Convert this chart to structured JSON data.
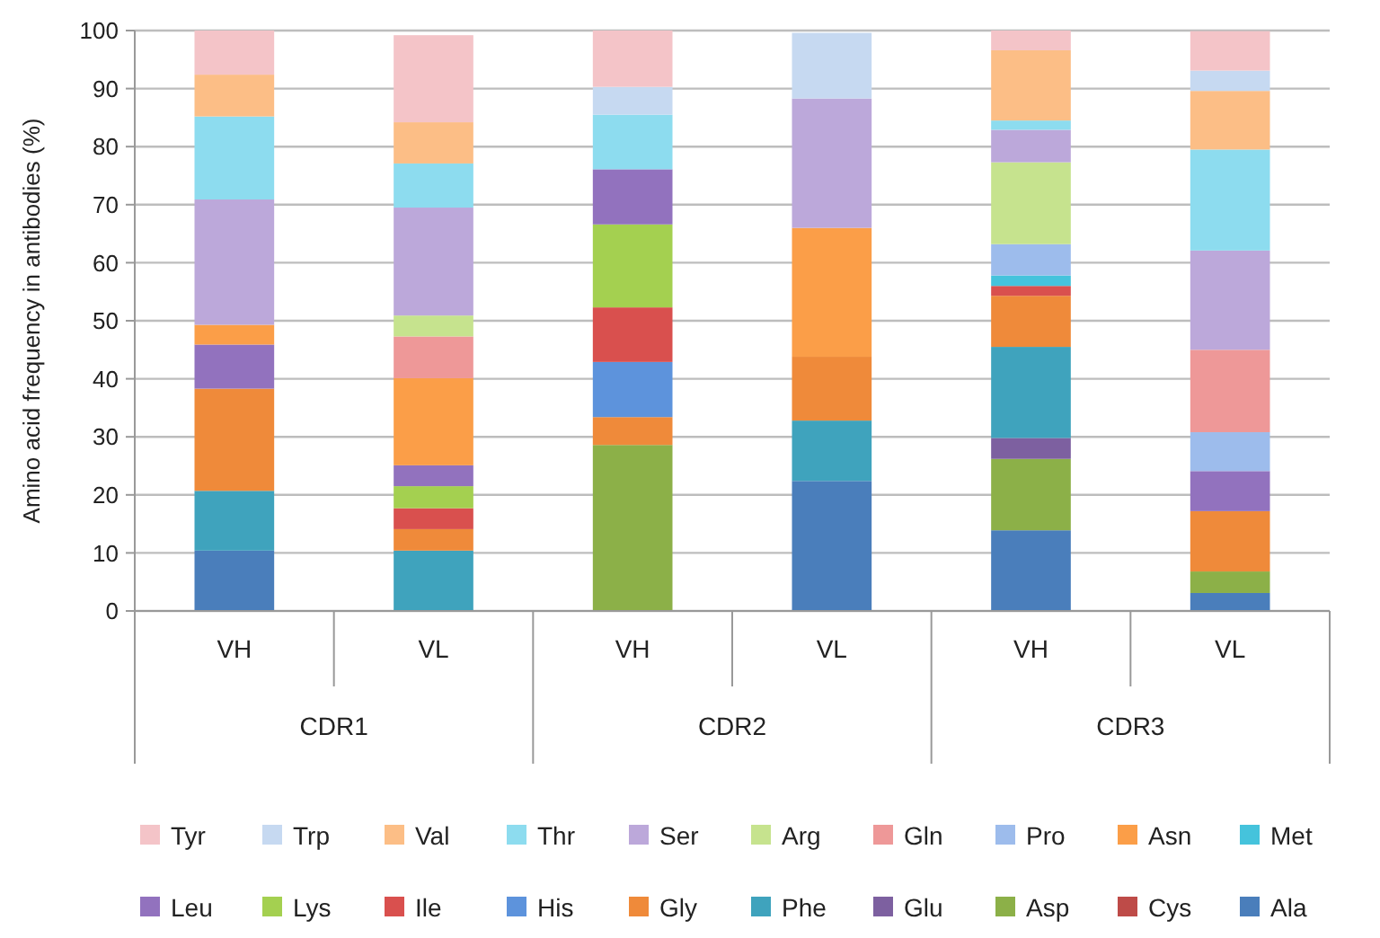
{
  "chart_data": {
    "type": "bar",
    "stacked": true,
    "ylabel": "Amino acid frequency in antibodies (%)",
    "categories": [
      "VH",
      "VL",
      "VH",
      "VL",
      "VH",
      "VL"
    ],
    "annotations": [
      "CDR1",
      "CDR2",
      "CDR3"
    ],
    "ylim": [
      0,
      100
    ],
    "yticks": [
      0,
      10,
      20,
      30,
      40,
      50,
      60,
      70,
      80,
      90,
      100
    ],
    "grid": "y",
    "legend": "bottom",
    "series": [
      {
        "name": "Ala",
        "color": "#4a7ebb",
        "values": [
          10.4,
          null,
          null,
          22.4,
          13.9,
          3.1
        ]
      },
      {
        "name": "Cys",
        "color": "#be4b48",
        "values": [
          null,
          null,
          null,
          null,
          null,
          null
        ]
      },
      {
        "name": "Asp",
        "color": "#8cb048",
        "values": [
          null,
          null,
          28.6,
          null,
          12.3,
          3.7
        ]
      },
      {
        "name": "Glu",
        "color": "#7d60a0",
        "values": [
          null,
          null,
          null,
          null,
          3.6,
          null
        ]
      },
      {
        "name": "Phe",
        "color": "#3fa3bd",
        "values": [
          10.3,
          10.4,
          null,
          10.4,
          15.7,
          null
        ]
      },
      {
        "name": "Gly",
        "color": "#ef8a3a",
        "values": [
          17.6,
          3.7,
          4.8,
          11.0,
          8.8,
          10.4
        ]
      },
      {
        "name": "His",
        "color": "#5d93dc",
        "values": [
          null,
          null,
          9.5,
          null,
          null,
          null
        ]
      },
      {
        "name": "Ile",
        "color": "#d9504e",
        "values": [
          null,
          3.6,
          9.4,
          null,
          1.7,
          null
        ]
      },
      {
        "name": "Lys",
        "color": "#a4d050",
        "values": [
          null,
          3.8,
          14.3,
          null,
          null,
          null
        ]
      },
      {
        "name": "Leu",
        "color": "#9272be",
        "values": [
          7.6,
          3.6,
          9.5,
          null,
          null,
          6.9
        ]
      },
      {
        "name": "Met",
        "color": "#45c3dc",
        "values": [
          null,
          null,
          null,
          null,
          1.8,
          null
        ]
      },
      {
        "name": "Asn",
        "color": "#fb9e48",
        "values": [
          3.4,
          15.0,
          null,
          22.2,
          null,
          null
        ]
      },
      {
        "name": "Pro",
        "color": "#9dbcec",
        "values": [
          null,
          null,
          null,
          null,
          5.4,
          6.7
        ]
      },
      {
        "name": "Gln",
        "color": "#ee9898",
        "values": [
          null,
          7.2,
          null,
          null,
          null,
          14.2
        ]
      },
      {
        "name": "Arg",
        "color": "#c6e38e",
        "values": [
          null,
          3.6,
          null,
          null,
          14.1,
          null
        ]
      },
      {
        "name": "Ser",
        "color": "#bca8da",
        "values": [
          21.6,
          18.6,
          null,
          22.3,
          5.6,
          17.1
        ]
      },
      {
        "name": "Thr",
        "color": "#8ddcef",
        "values": [
          14.3,
          7.6,
          9.4,
          null,
          1.6,
          17.4
        ]
      },
      {
        "name": "Val",
        "color": "#fcbe86",
        "values": [
          7.2,
          7.1,
          null,
          null,
          12.1,
          10.1
        ]
      },
      {
        "name": "Trp",
        "color": "#c6d9f1",
        "values": [
          null,
          null,
          4.8,
          11.3,
          null,
          3.5
        ]
      },
      {
        "name": "Tyr",
        "color": "#f4c4c8",
        "values": [
          7.6,
          15.0,
          9.7,
          null,
          3.4,
          6.8
        ]
      }
    ]
  }
}
